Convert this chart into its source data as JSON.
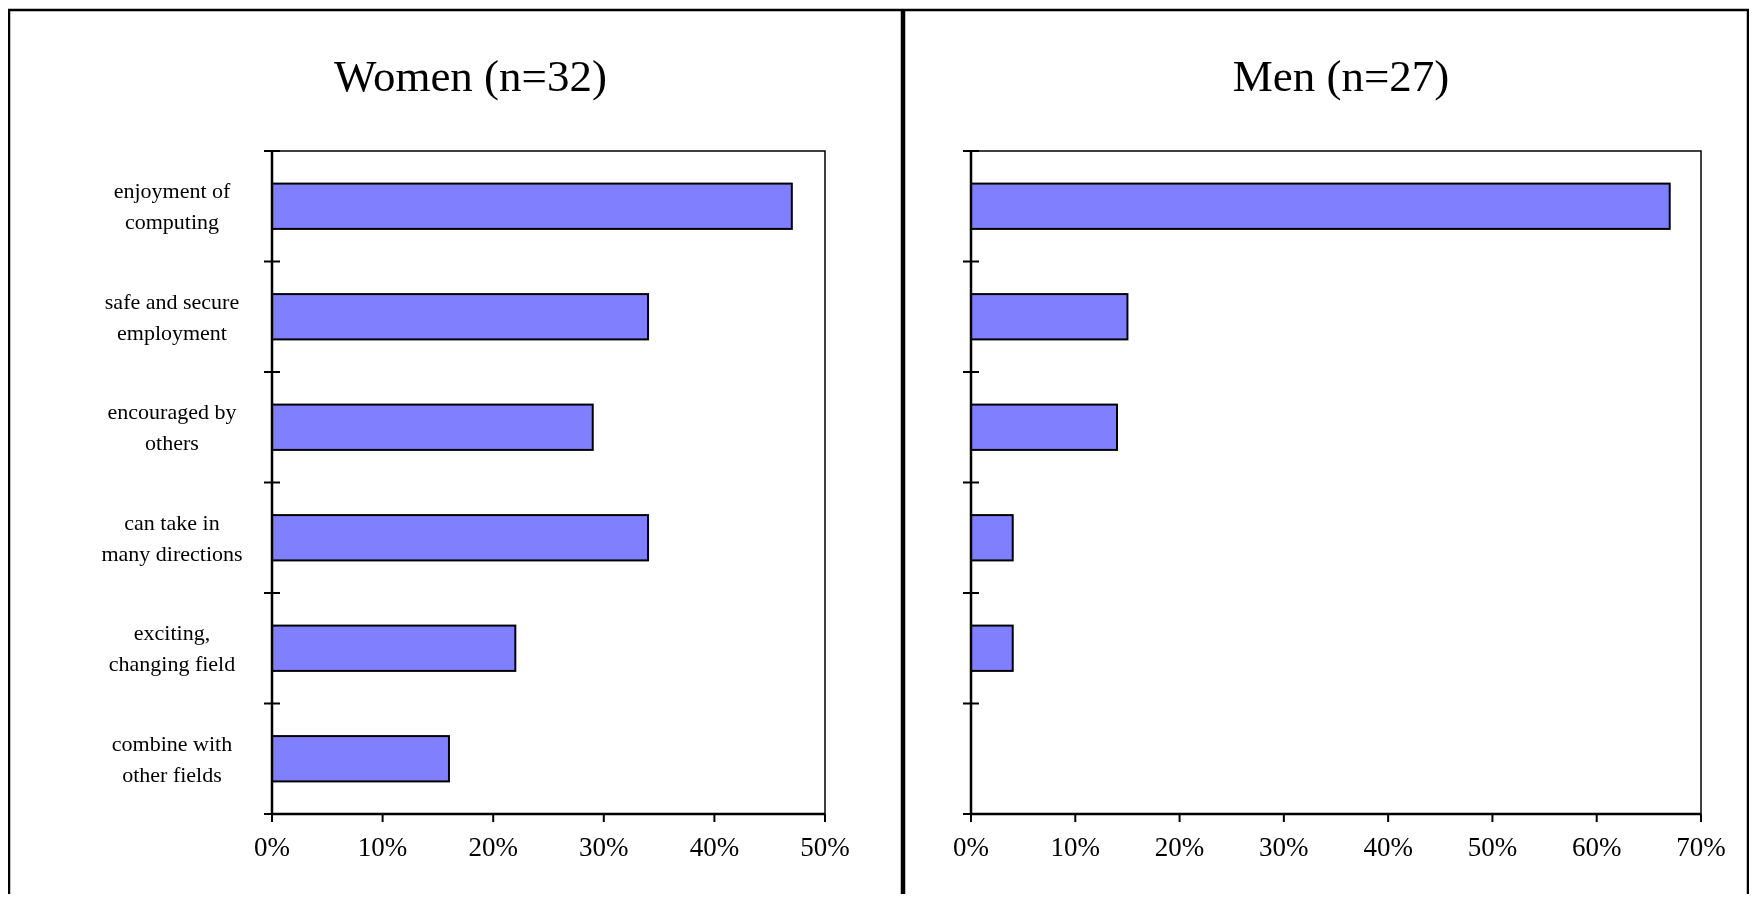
{
  "chart_data": [
    {
      "type": "bar",
      "orientation": "horizontal",
      "title": "Women (n=32)",
      "categories": [
        "enjoyment of computing",
        "safe and secure employment",
        "encouraged by others",
        "can take in many directions",
        "exciting, changing field",
        "combine with other fields"
      ],
      "values": [
        47,
        34,
        29,
        34,
        22,
        16
      ],
      "color": "#8080ff",
      "xlim": [
        0,
        50
      ],
      "xticks": [
        {
          "value": 0,
          "label": "0%"
        },
        {
          "value": 10,
          "label": "10%"
        },
        {
          "value": 20,
          "label": "20%"
        },
        {
          "value": 30,
          "label": "30%"
        },
        {
          "value": 40,
          "label": "40%"
        },
        {
          "value": 50,
          "label": "50%"
        }
      ],
      "grid": false
    },
    {
      "type": "bar",
      "orientation": "horizontal",
      "title": "Men (n=27)",
      "categories": [
        null,
        null,
        null,
        null,
        null,
        null
      ],
      "values": [
        67,
        15,
        14,
        4,
        4,
        0
      ],
      "color": "#8080ff",
      "xlim": [
        0,
        70
      ],
      "xticks": [
        {
          "value": 0,
          "label": "0%"
        },
        {
          "value": 10,
          "label": "10%"
        },
        {
          "value": 20,
          "label": "20%"
        },
        {
          "value": 30,
          "label": "30%"
        },
        {
          "value": 40,
          "label": "40%"
        },
        {
          "value": 50,
          "label": "50%"
        },
        {
          "value": 60,
          "label": "60%"
        },
        {
          "value": 70,
          "label": "70%"
        }
      ],
      "tick_labels": "x",
      "grid": false
    }
  ]
}
